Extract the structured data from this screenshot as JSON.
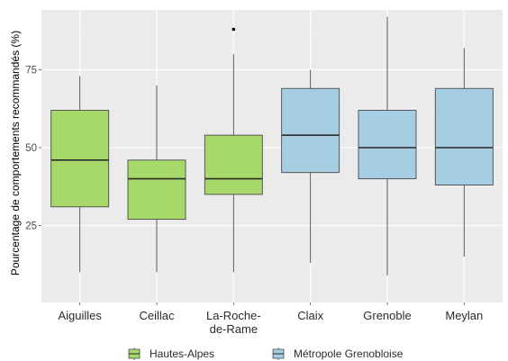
{
  "chart_data": {
    "type": "boxplot",
    "ylabel": "Pourcentage de comportements recommandés (%)",
    "xlabel": "",
    "ylim": [
      0,
      100
    ],
    "yticks": [
      25,
      50,
      75
    ],
    "grid": true,
    "legend_position": "bottom",
    "groups": [
      {
        "name": "Hautes-Alpes",
        "color": "#a6d96a"
      },
      {
        "name": "Métropole Grenobloise",
        "color": "#a6cee3"
      }
    ],
    "categories": [
      {
        "label": "Aiguilles",
        "group": 0,
        "min": 10,
        "q1": 31,
        "median": 46,
        "q3": 62,
        "max": 73,
        "outliers": []
      },
      {
        "label": "Ceillac",
        "group": 0,
        "min": 10,
        "q1": 27,
        "median": 40,
        "q3": 46,
        "max": 70,
        "outliers": []
      },
      {
        "label": "La-Roche-\nde-Rame",
        "group": 0,
        "min": 10,
        "q1": 35,
        "median": 40,
        "q3": 54,
        "max": 80,
        "outliers": [
          88
        ]
      },
      {
        "label": "Claix",
        "group": 1,
        "min": 13,
        "q1": 42,
        "median": 54,
        "q3": 69,
        "max": 75,
        "outliers": []
      },
      {
        "label": "Grenoble",
        "group": 1,
        "min": 9,
        "q1": 40,
        "median": 50,
        "q3": 62,
        "max": 92,
        "outliers": []
      },
      {
        "label": "Meylan",
        "group": 1,
        "min": 15,
        "q1": 38,
        "median": 50,
        "q3": 69,
        "max": 82,
        "outliers": []
      }
    ]
  }
}
